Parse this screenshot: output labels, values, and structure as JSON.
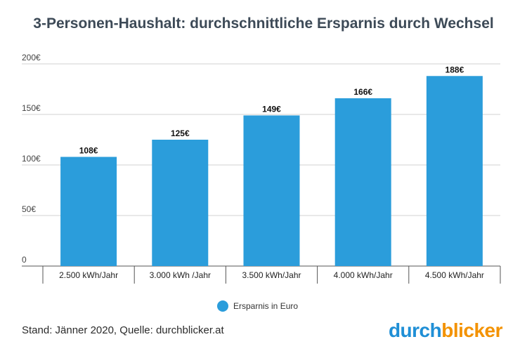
{
  "title": "3-Personen-Haushalt: durchschnittliche Ersparnis durch Wechsel",
  "chart_data": {
    "type": "bar",
    "categories": [
      "2.500 kWh/Jahr",
      "3.000 kWh /Jahr",
      "3.500 kWh/Jahr",
      "4.000 kWh/Jahr",
      "4.500 kWh/Jahr"
    ],
    "series": [
      {
        "name": "Ersparnis in Euro",
        "values": [
          108,
          125,
          149,
          166,
          188
        ],
        "data_labels": [
          "108€",
          "125€",
          "149€",
          "166€",
          "188€"
        ],
        "color": "#2b9ddb"
      }
    ],
    "ylim": [
      0,
      200
    ],
    "yticks": [
      0,
      50,
      100,
      150,
      200
    ],
    "ytick_labels": [
      "0",
      "50€",
      "100€",
      "150€",
      "200€"
    ],
    "grid": true,
    "legend_position": "bottom-center",
    "colors": {
      "bar": "#2b9ddb",
      "grid": "#d0d0d0",
      "axis_text": "#444444",
      "title": "#3d4a57"
    }
  },
  "footer": {
    "source": "Stand: Jänner 2020, Quelle: durchblicker.at"
  },
  "logo": {
    "part1": "durch",
    "part2": "blicker",
    "color1": "#1f8fd6",
    "color2": "#f39200"
  }
}
